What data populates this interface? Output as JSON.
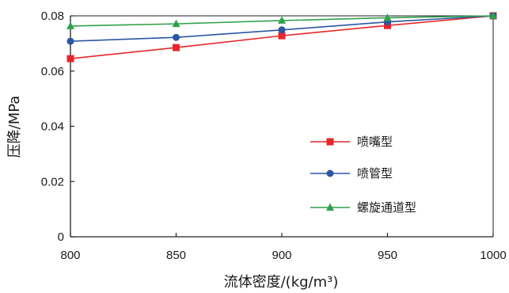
{
  "chart_data": {
    "type": "line",
    "xlabel": "流体密度/(kg/m³)",
    "ylabel": "压降/MPa",
    "x": [
      800,
      850,
      900,
      950,
      1000
    ],
    "xlim": [
      800,
      1000
    ],
    "ylim": [
      0,
      0.08
    ],
    "x_ticks": [
      "800",
      "850",
      "900",
      "950",
      "1000"
    ],
    "y_ticks": [
      "0",
      "0.02",
      "0.04",
      "0.06",
      "0.08"
    ],
    "y_tick_values": [
      0,
      0.02,
      0.04,
      0.06,
      0.08
    ],
    "grid": false,
    "legend_position": "center-right",
    "series": [
      {
        "name": "喷嘴型",
        "color": "#e8262a",
        "marker": "square",
        "values": [
          0.0645,
          0.0685,
          0.0728,
          0.0765,
          0.08
        ]
      },
      {
        "name": "喷管型",
        "color": "#2c57a4",
        "marker": "circle",
        "values": [
          0.0708,
          0.0722,
          0.0749,
          0.0778,
          0.08
        ]
      },
      {
        "name": "螺旋通道型",
        "color": "#2fa14a",
        "marker": "triangle",
        "values": [
          0.0763,
          0.0771,
          0.0783,
          0.0793,
          0.08
        ]
      }
    ]
  }
}
